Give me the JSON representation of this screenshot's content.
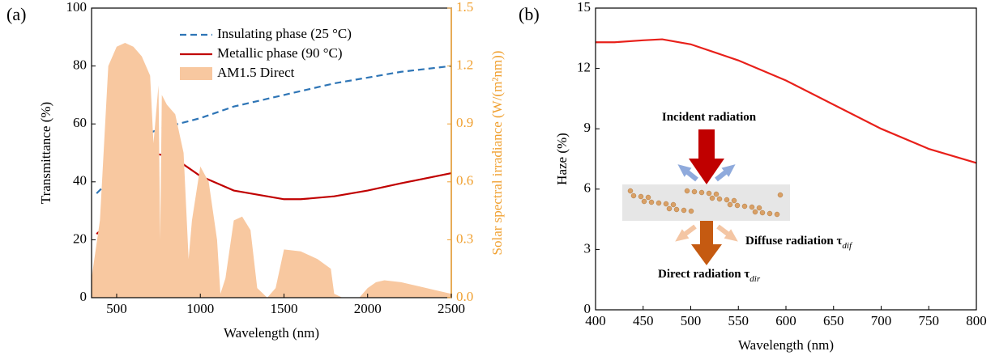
{
  "chart_data": [
    {
      "type": "line",
      "label": "(a)",
      "xlabel": "Wavelength (nm)",
      "ylabel": "Transmittance (%)",
      "y2label": "Solar spectral irradiance (W/(m²nm))",
      "y2_color": "#f0a030",
      "xlim": [
        350,
        2500
      ],
      "xticks": [
        500,
        1000,
        1500,
        2000,
        2500
      ],
      "ylim": [
        0,
        100
      ],
      "yticks": [
        0,
        20,
        40,
        60,
        80,
        100
      ],
      "y2lim": [
        0,
        1.5
      ],
      "y2ticks": [
        {
          "value": 0,
          "label": "0.0"
        },
        0.3,
        0.6,
        0.9,
        1.2,
        1.5
      ],
      "legend": "top",
      "series": [
        {
          "name": "Insulating phase (25 °C)",
          "color": "#2e75b6",
          "style": "dashed",
          "x": [
            380,
            450,
            500,
            600,
            700,
            800,
            1000,
            1200,
            1500,
            1800,
            2000,
            2200,
            2500
          ],
          "values": [
            36,
            40,
            46,
            53,
            57,
            59,
            62,
            66,
            70,
            74,
            76,
            78,
            80
          ]
        },
        {
          "name": "Metallic phase (90 °C)",
          "color": "#c00000",
          "style": "solid",
          "x": [
            380,
            400,
            450,
            500,
            600,
            700,
            750,
            800,
            900,
            1000,
            1200,
            1500,
            1600,
            1800,
            2000,
            2200,
            2500
          ],
          "values": [
            22,
            23,
            24,
            28,
            40,
            48,
            49.5,
            49,
            46,
            42,
            37,
            34,
            34,
            35,
            37,
            39.5,
            43
          ]
        },
        {
          "name": "AM1.5 Direct",
          "color": "#f8c8a0",
          "style": "area",
          "axis": "y2",
          "x": [
            350,
            400,
            450,
            500,
            550,
            600,
            650,
            700,
            720,
            750,
            760,
            770,
            800,
            850,
            900,
            930,
            950,
            1000,
            1050,
            1100,
            1120,
            1150,
            1200,
            1250,
            1300,
            1340,
            1400,
            1450,
            1500,
            1600,
            1700,
            1780,
            1800,
            1850,
            1950,
            2000,
            2050,
            2100,
            2200,
            2300,
            2400,
            2500
          ],
          "values": [
            0.1,
            0.4,
            1.2,
            1.3,
            1.32,
            1.3,
            1.25,
            1.15,
            0.8,
            1.1,
            0.3,
            1.05,
            1.0,
            0.95,
            0.75,
            0.2,
            0.4,
            0.68,
            0.6,
            0.3,
            0.02,
            0.1,
            0.4,
            0.42,
            0.35,
            0.05,
            0,
            0.05,
            0.25,
            0.24,
            0.2,
            0.15,
            0.02,
            0,
            0,
            0.05,
            0.08,
            0.09,
            0.08,
            0.06,
            0.04,
            0.02
          ]
        }
      ]
    },
    {
      "type": "line",
      "label": "(b)",
      "xlabel": "Wavelength (nm)",
      "ylabel": "Haze (%)",
      "xlim": [
        400,
        800
      ],
      "xticks": [
        400,
        450,
        500,
        550,
        600,
        650,
        700,
        750,
        800
      ],
      "ylim": [
        0,
        15
      ],
      "yticks": [
        0,
        3,
        6,
        9,
        12,
        15
      ],
      "annotations": [
        {
          "text": "Incident radiation"
        },
        {
          "text": "Diffuse radiation τ",
          "subscript": "dif"
        },
        {
          "text": "Direct radiation τ",
          "subscript": "dir"
        }
      ],
      "series": [
        {
          "color": "#e8201a",
          "style": "solid",
          "x": [
            400,
            420,
            450,
            470,
            500,
            550,
            600,
            650,
            700,
            750,
            800
          ],
          "values": [
            13.3,
            13.3,
            13.4,
            13.45,
            13.2,
            12.4,
            11.4,
            10.2,
            9,
            8,
            7.3
          ]
        }
      ]
    }
  ]
}
